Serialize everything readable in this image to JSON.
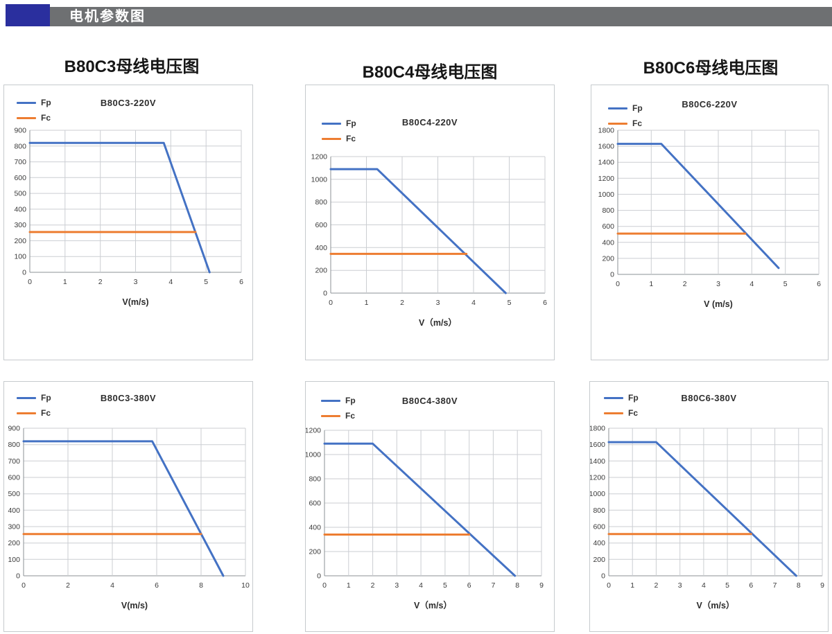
{
  "header": {
    "title": "电机参数图",
    "accent_color": "#2a2f9e",
    "bar_color": "#6e7072"
  },
  "columns": [
    "B80C3母线电压图",
    "B80C4母线电压图",
    "B80C6母线电压图"
  ],
  "line_colors": {
    "fp": "#4472C4",
    "fc": "#ED7D31"
  },
  "chart_data": [
    {
      "type": "line",
      "title": "B80C3-220V",
      "xlabel": "V(m/s)",
      "xlim": [
        0,
        6
      ],
      "x_step": 1,
      "ylim": [
        0,
        900
      ],
      "y_step": 100,
      "grid": true,
      "legend_position": "top-left",
      "series": [
        {
          "name": "Fp",
          "color": "#4472C4",
          "points": [
            [
              0,
              820
            ],
            [
              3.8,
              820
            ],
            [
              5.1,
              0
            ]
          ]
        },
        {
          "name": "Fc",
          "color": "#ED7D31",
          "points": [
            [
              0,
              255
            ],
            [
              4.7,
              255
            ]
          ]
        }
      ]
    },
    {
      "type": "line",
      "title": "B80C4-220V",
      "xlabel": "V（m/s）",
      "xlim": [
        0,
        6
      ],
      "x_step": 1,
      "ylim": [
        0,
        1200
      ],
      "y_step": 200,
      "grid": true,
      "legend_position": "top-left",
      "series": [
        {
          "name": "Fp",
          "color": "#4472C4",
          "points": [
            [
              0,
              1090
            ],
            [
              1.3,
              1090
            ],
            [
              4.9,
              0
            ]
          ]
        },
        {
          "name": "Fc",
          "color": "#ED7D31",
          "points": [
            [
              0,
              345
            ],
            [
              3.8,
              345
            ]
          ]
        }
      ]
    },
    {
      "type": "line",
      "title": "B80C6-220V",
      "xlabel": "V (m/s)",
      "xlim": [
        0,
        6
      ],
      "x_step": 1,
      "ylim": [
        0,
        1800
      ],
      "y_step": 200,
      "grid": true,
      "legend_position": "top-left",
      "series": [
        {
          "name": "Fp",
          "color": "#4472C4",
          "points": [
            [
              0,
              1630
            ],
            [
              1.3,
              1630
            ],
            [
              4.8,
              80
            ]
          ]
        },
        {
          "name": "Fc",
          "color": "#ED7D31",
          "points": [
            [
              0,
              510
            ],
            [
              3.8,
              510
            ]
          ]
        }
      ]
    },
    {
      "type": "line",
      "title": "B80C3-380V",
      "xlabel": "V(m/s)",
      "xlim": [
        0,
        10
      ],
      "x_step": 2,
      "ylim": [
        0,
        900
      ],
      "y_step": 100,
      "grid": true,
      "legend_position": "top-left",
      "series": [
        {
          "name": "Fp",
          "color": "#4472C4",
          "points": [
            [
              0,
              820
            ],
            [
              5.8,
              820
            ],
            [
              9,
              0
            ]
          ]
        },
        {
          "name": "Fc",
          "color": "#ED7D31",
          "points": [
            [
              0,
              255
            ],
            [
              8,
              255
            ]
          ]
        }
      ]
    },
    {
      "type": "line",
      "title": "B80C4-380V",
      "xlabel": "V（m/s）",
      "xlim": [
        0,
        9
      ],
      "x_step": 1,
      "ylim": [
        0,
        1200
      ],
      "y_step": 200,
      "grid": true,
      "legend_position": "top-left",
      "series": [
        {
          "name": "Fp",
          "color": "#4472C4",
          "points": [
            [
              0,
              1090
            ],
            [
              2,
              1090
            ],
            [
              7.9,
              0
            ]
          ]
        },
        {
          "name": "Fc",
          "color": "#ED7D31",
          "points": [
            [
              0,
              340
            ],
            [
              6,
              340
            ]
          ]
        }
      ]
    },
    {
      "type": "line",
      "title": "B80C6-380V",
      "xlabel": "V（m/s）",
      "xlim": [
        0,
        9
      ],
      "x_step": 1,
      "ylim": [
        0,
        1800
      ],
      "y_step": 200,
      "grid": true,
      "legend_position": "top-left",
      "series": [
        {
          "name": "Fp",
          "color": "#4472C4",
          "points": [
            [
              0,
              1630
            ],
            [
              2,
              1630
            ],
            [
              7.9,
              0
            ]
          ]
        },
        {
          "name": "Fc",
          "color": "#ED7D31",
          "points": [
            [
              0,
              510
            ],
            [
              6,
              510
            ]
          ]
        }
      ]
    }
  ]
}
